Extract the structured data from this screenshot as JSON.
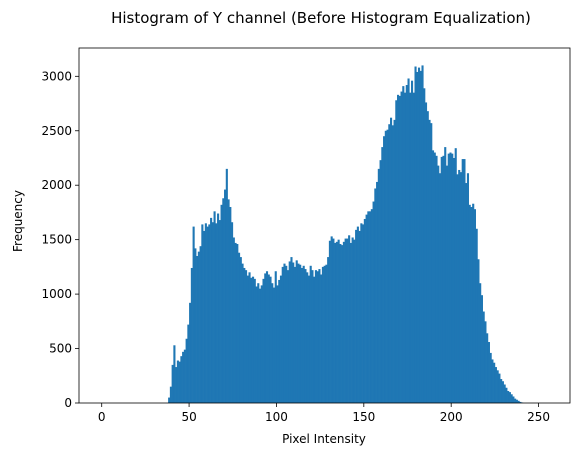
{
  "chart_data": {
    "type": "bar",
    "title": "Histogram of Y channel (Before Histogram Equalization)",
    "xlabel": "Pixel Intensity",
    "ylabel": "Frequency",
    "xlim": [
      -13,
      268
    ],
    "ylim": [
      0,
      3260
    ],
    "xticks": [
      "0",
      "50",
      "100",
      "150",
      "200",
      "250"
    ],
    "yticks": [
      "0",
      "500",
      "1000",
      "1500",
      "2000",
      "2500",
      "3000"
    ],
    "bar_color": "#1f77b4",
    "bins": {
      "start": 0,
      "width": 1
    },
    "values": [
      0,
      0,
      0,
      0,
      0,
      0,
      0,
      0,
      0,
      0,
      0,
      0,
      0,
      0,
      0,
      0,
      0,
      0,
      0,
      0,
      0,
      0,
      0,
      0,
      0,
      0,
      0,
      0,
      0,
      0,
      0,
      0,
      0,
      0,
      0,
      0,
      0,
      0,
      50,
      150,
      350,
      530,
      330,
      390,
      380,
      430,
      470,
      490,
      590,
      720,
      920,
      1240,
      1620,
      1420,
      1350,
      1390,
      1440,
      1640,
      1580,
      1650,
      1620,
      1640,
      1700,
      1660,
      1760,
      1650,
      1740,
      1680,
      1820,
      1880,
      1960,
      2150,
      1870,
      1800,
      1660,
      1520,
      1470,
      1460,
      1380,
      1340,
      1280,
      1240,
      1220,
      1170,
      1200,
      1150,
      1160,
      1140,
      1070,
      1100,
      1050,
      1080,
      1140,
      1190,
      1210,
      1180,
      1160,
      1100,
      1060,
      1210,
      1080,
      1130,
      1170,
      1250,
      1280,
      1260,
      1220,
      1300,
      1340,
      1290,
      1250,
      1310,
      1280,
      1270,
      1240,
      1260,
      1230,
      1200,
      1170,
      1260,
      1220,
      1160,
      1220,
      1210,
      1230,
      1180,
      1250,
      1260,
      1270,
      1340,
      1490,
      1530,
      1510,
      1470,
      1480,
      1500,
      1460,
      1450,
      1480,
      1510,
      1510,
      1540,
      1470,
      1520,
      1500,
      1590,
      1620,
      1580,
      1650,
      1640,
      1690,
      1730,
      1760,
      1760,
      1780,
      1850,
      1970,
      2030,
      2150,
      2230,
      2350,
      2450,
      2500,
      2510,
      2560,
      2620,
      2550,
      2600,
      2780,
      2830,
      2820,
      2860,
      2910,
      2850,
      2920,
      2980,
      2850,
      2960,
      2850,
      3090,
      3040,
      3080,
      3050,
      3100,
      2890,
      2760,
      2680,
      2600,
      2570,
      2320,
      2300,
      2270,
      2180,
      2110,
      2260,
      2270,
      2350,
      2180,
      2290,
      2300,
      2290,
      2250,
      2340,
      2100,
      2140,
      2120,
      2240,
      2240,
      2020,
      2110,
      1820,
      1800,
      1830,
      1780,
      1600,
      1320,
      1100,
      990,
      840,
      750,
      640,
      560,
      460,
      400,
      370,
      330,
      300,
      270,
      220,
      200,
      170,
      140,
      110,
      100,
      80,
      60,
      40,
      30,
      20,
      10,
      5,
      0,
      0,
      0,
      0,
      0,
      0,
      0,
      0,
      0,
      0,
      0,
      0,
      0,
      0,
      0
    ]
  }
}
